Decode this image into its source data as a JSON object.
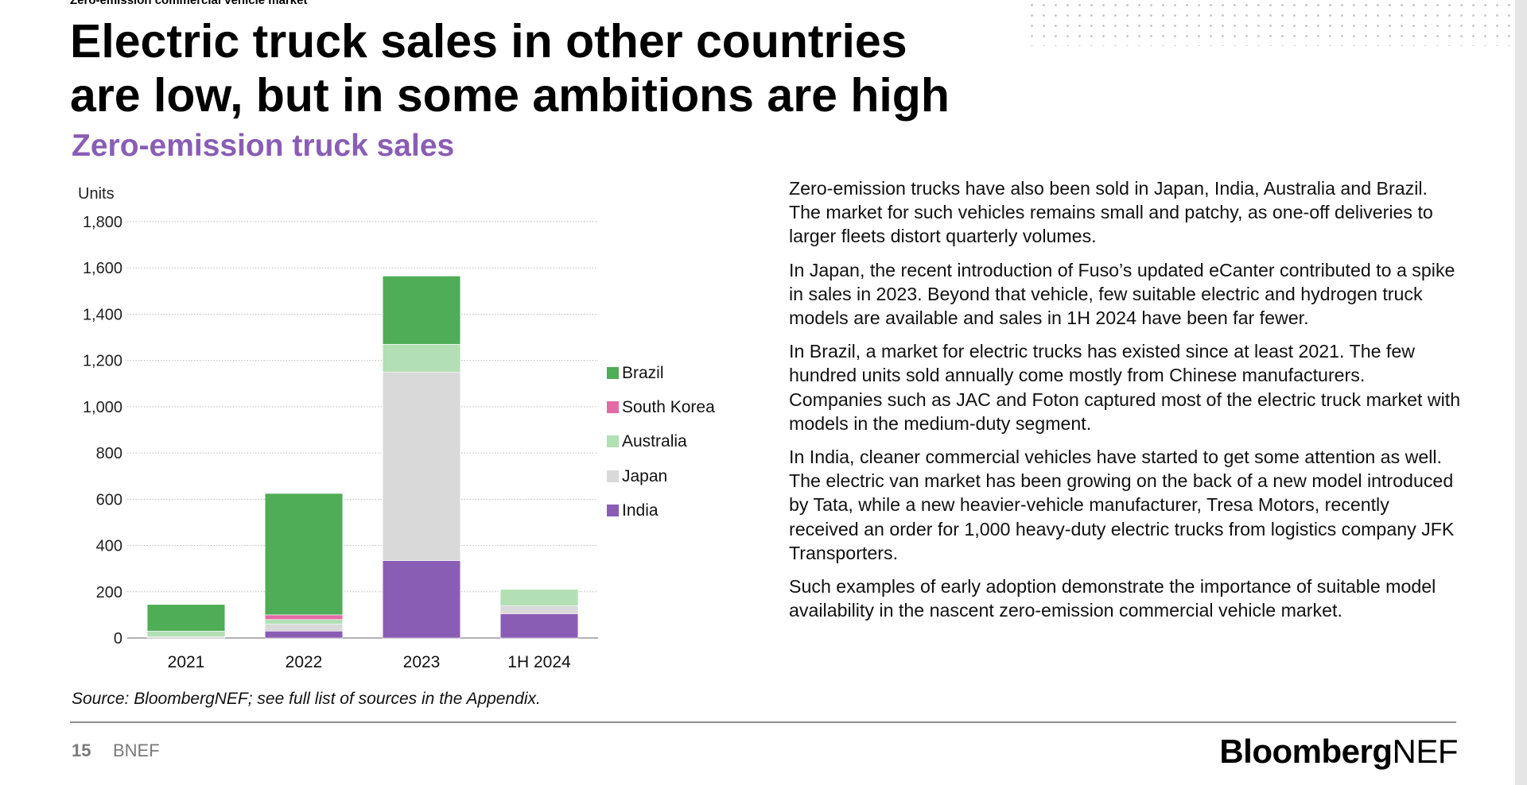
{
  "header": {
    "section_label": "Zero-emission commercial vehicle market",
    "title_line1": "Electric truck sales in other countries",
    "title_line2": "are low, but in some ambitions are high",
    "subtitle": "Zero-emission truck sales"
  },
  "chart_data": {
    "type": "bar",
    "stacked": true,
    "ylabel": "Units",
    "ylim": [
      0,
      1800
    ],
    "yticks": [
      0,
      200,
      400,
      600,
      800,
      1000,
      1200,
      1400,
      1600,
      1800
    ],
    "ytick_labels": [
      "0",
      "200",
      "400",
      "600",
      "800",
      "1,000",
      "1,200",
      "1,400",
      "1,600",
      "1,800"
    ],
    "categories": [
      "2021",
      "2022",
      "2023",
      "1H 2024"
    ],
    "grid": true,
    "legend_position": "right",
    "series": [
      {
        "name": "India",
        "color": "#8a5db5",
        "values": [
          0,
          30,
          335,
          105
        ]
      },
      {
        "name": "Japan",
        "color": "#d9d9d9",
        "values": [
          5,
          30,
          815,
          35
        ]
      },
      {
        "name": "Australia",
        "color": "#b2dfb4",
        "values": [
          25,
          20,
          120,
          70
        ]
      },
      {
        "name": "South Korea",
        "color": "#e46aa5",
        "values": [
          0,
          20,
          0,
          0
        ]
      },
      {
        "name": "Brazil",
        "color": "#4ead56",
        "values": [
          115,
          525,
          295,
          0
        ]
      }
    ],
    "legend_order": [
      "Brazil",
      "South Korea",
      "Australia",
      "Japan",
      "India"
    ]
  },
  "body": {
    "paragraphs": [
      "Zero-emission trucks have also been sold in Japan, India, Australia and Brazil. The market for such vehicles remains small and patchy, as one-off deliveries to larger fleets distort quarterly volumes.",
      "In Japan, the recent introduction of Fuso’s updated eCanter contributed to a spike in sales in 2023. Beyond that vehicle, few suitable electric and hydrogen truck models are available and sales in 1H 2024 have been far fewer.",
      "In Brazil, a market for electric trucks has existed since at least 2021. The few hundred units sold annually come mostly from Chinese manufacturers. Companies such as JAC and Foton captured most of the electric truck market with models in the medium-duty segment.",
      "In India, cleaner commercial vehicles have started to get some attention as well. The electric van market has been growing on the back of a new model introduced by Tata, while a new heavier-vehicle manufacturer, Tresa Motors, recently received an order for 1,000 heavy-duty electric trucks from logistics company JFK Transporters.",
      "Such examples of early adoption demonstrate the importance of suitable model availability in the nascent zero-emission commercial vehicle market."
    ]
  },
  "source": "Source: BloombergNEF; see full list of sources in the Appendix.",
  "footer": {
    "page_number": "15",
    "brand": "BNEF",
    "logo_bold": "Bloomberg",
    "logo_regular": "NEF"
  }
}
